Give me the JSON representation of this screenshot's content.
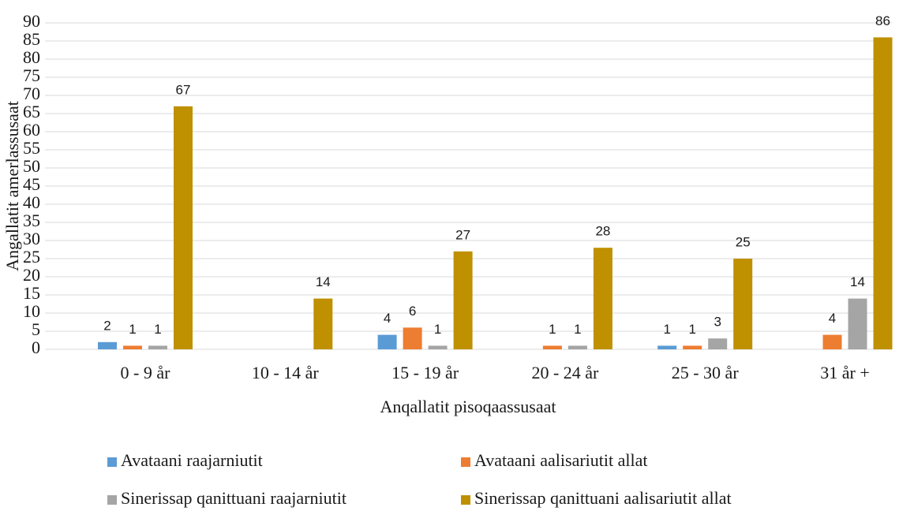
{
  "chart_data": {
    "type": "bar",
    "x_label": "Anqallatit pisoqaassusaat",
    "y_label": "Angallatit amerlassusaat",
    "categories": [
      "0 - 9 år",
      "10 - 14 år",
      "15 - 19 år",
      "20 - 24 år",
      "25 - 30 år",
      "31 år +"
    ],
    "series": [
      {
        "name": "Avataani raajarniutit",
        "color": "#5b9bd5",
        "values": [
          2,
          null,
          4,
          null,
          1,
          null
        ]
      },
      {
        "name": "Avataani aalisariutit allat",
        "color": "#ed7d31",
        "values": [
          1,
          null,
          6,
          1,
          1,
          4
        ]
      },
      {
        "name": "Sinerissap qanittuani raajarniutit",
        "color": "#a5a5a5",
        "values": [
          1,
          null,
          1,
          1,
          3,
          14
        ]
      },
      {
        "name": "Sinerissap qanittuani aalisariutit allat",
        "color": "#bf9000",
        "values": [
          67,
          14,
          27,
          28,
          25,
          86
        ]
      }
    ],
    "ylim": [
      0,
      90
    ],
    "yticks": [
      0,
      5,
      10,
      15,
      20,
      25,
      30,
      35,
      40,
      45,
      50,
      55,
      60,
      65,
      70,
      75,
      80,
      85,
      90
    ],
    "grid": true,
    "legend": "bottom"
  }
}
